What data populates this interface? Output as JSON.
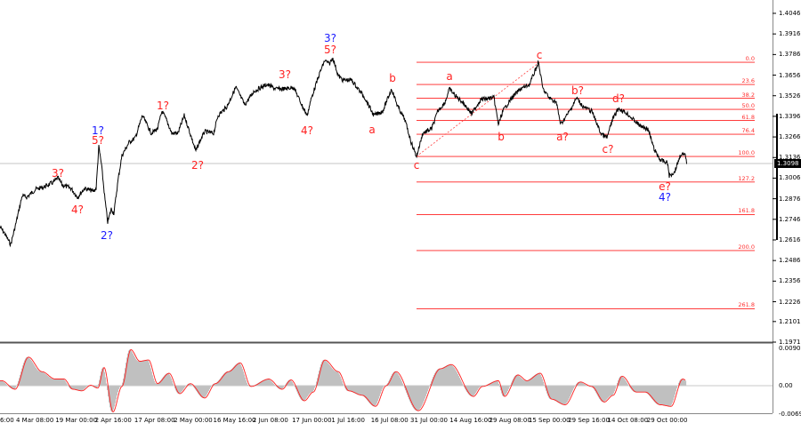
{
  "chart_data": {
    "type": "line",
    "title": "",
    "main_panel": {
      "y_ticks": [
        "1.4046",
        "1.3916",
        "1.3786",
        "1.3656",
        "1.3526",
        "1.3396",
        "1.3266",
        "1.3136",
        "1.3006",
        "1.2876",
        "1.2746",
        "1.2616",
        "1.2486",
        "1.2356",
        "1.2226",
        "1.2101",
        "1.1971"
      ],
      "ylim": [
        1.1971,
        1.4046
      ],
      "current_price": "1.3098",
      "price_points": [
        [
          0,
          1.2699
        ],
        [
          5,
          1.266
        ],
        [
          12,
          1.2587
        ],
        [
          17,
          1.2699
        ],
        [
          25,
          1.2896
        ],
        [
          30,
          1.2885
        ],
        [
          40,
          1.2935
        ],
        [
          50,
          1.2952
        ],
        [
          60,
          1.298
        ],
        [
          65,
          1.3008
        ],
        [
          70,
          1.2963
        ],
        [
          80,
          1.2941
        ],
        [
          87,
          1.2885
        ],
        [
          95,
          1.2941
        ],
        [
          105,
          1.2924
        ],
        [
          108,
          1.2941
        ],
        [
          111,
          1.3204
        ],
        [
          114,
          1.3092
        ],
        [
          118,
          1.2868
        ],
        [
          121,
          1.2728
        ],
        [
          125,
          1.2812
        ],
        [
          128,
          1.2784
        ],
        [
          133,
          1.3008
        ],
        [
          137,
          1.3148
        ],
        [
          145,
          1.3232
        ],
        [
          152,
          1.326
        ],
        [
          160,
          1.3401
        ],
        [
          165,
          1.3345
        ],
        [
          170,
          1.3289
        ],
        [
          177,
          1.3317
        ],
        [
          182,
          1.3429
        ],
        [
          187,
          1.3373
        ],
        [
          193,
          1.3289
        ],
        [
          200,
          1.3289
        ],
        [
          207,
          1.3401
        ],
        [
          212,
          1.3317
        ],
        [
          220,
          1.3176
        ],
        [
          224,
          1.3232
        ],
        [
          230,
          1.33
        ],
        [
          240,
          1.3289
        ],
        [
          245,
          1.3401
        ],
        [
          255,
          1.3457
        ],
        [
          265,
          1.358
        ],
        [
          270,
          1.3524
        ],
        [
          275,
          1.3468
        ],
        [
          285,
          1.3552
        ],
        [
          290,
          1.3569
        ],
        [
          300,
          1.3597
        ],
        [
          310,
          1.3569
        ],
        [
          320,
          1.3569
        ],
        [
          330,
          1.358
        ],
        [
          340,
          1.3457
        ],
        [
          345,
          1.3401
        ],
        [
          350,
          1.3513
        ],
        [
          360,
          1.3681
        ],
        [
          365,
          1.3749
        ],
        [
          370,
          1.3726
        ],
        [
          374,
          1.3765
        ],
        [
          380,
          1.3653
        ],
        [
          385,
          1.3625
        ],
        [
          395,
          1.3625
        ],
        [
          410,
          1.3513
        ],
        [
          420,
          1.3401
        ],
        [
          430,
          1.3429
        ],
        [
          440,
          1.3569
        ],
        [
          447,
          1.3457
        ],
        [
          455,
          1.3373
        ],
        [
          462,
          1.3232
        ],
        [
          468,
          1.3143
        ],
        [
          475,
          1.3289
        ],
        [
          485,
          1.3317
        ],
        [
          492,
          1.3429
        ],
        [
          500,
          1.3485
        ],
        [
          505,
          1.3569
        ],
        [
          512,
          1.3524
        ],
        [
          520,
          1.3485
        ],
        [
          530,
          1.3412
        ],
        [
          540,
          1.3502
        ],
        [
          555,
          1.3513
        ],
        [
          560,
          1.3345
        ],
        [
          565,
          1.3429
        ],
        [
          575,
          1.3513
        ],
        [
          585,
          1.3569
        ],
        [
          595,
          1.3597
        ],
        [
          605,
          1.3737
        ],
        [
          610,
          1.3569
        ],
        [
          617,
          1.3513
        ],
        [
          625,
          1.3485
        ],
        [
          630,
          1.3345
        ],
        [
          640,
          1.3429
        ],
        [
          648,
          1.3513
        ],
        [
          655,
          1.3457
        ],
        [
          665,
          1.3429
        ],
        [
          675,
          1.3289
        ],
        [
          682,
          1.326
        ],
        [
          688,
          1.3373
        ],
        [
          695,
          1.3446
        ],
        [
          705,
          1.3412
        ],
        [
          712,
          1.3373
        ],
        [
          720,
          1.3333
        ],
        [
          728,
          1.3317
        ],
        [
          735,
          1.3188
        ],
        [
          742,
          1.312
        ],
        [
          750,
          1.3103
        ],
        [
          752,
          1.3019
        ],
        [
          758,
          1.3047
        ],
        [
          765,
          1.3159
        ],
        [
          770,
          1.3148
        ],
        [
          772,
          1.3098
        ]
      ],
      "fibonacci": {
        "price_0": 1.3737,
        "price_100": 1.3143,
        "levels": [
          "0.0",
          "23.6",
          "38.2",
          "50.0",
          "61.8",
          "76.4",
          "100.0",
          "127.2",
          "161.8",
          "200.0",
          "261.8"
        ],
        "color": "#ff2020"
      },
      "wave_labels": [
        {
          "text": "3?",
          "color": "#ff2020"
        },
        {
          "text": "4?",
          "color": "#ff2020"
        },
        {
          "text": "1?",
          "color": "#1a1aff"
        },
        {
          "text": "5?",
          "color": "#ff2020"
        },
        {
          "text": "2?",
          "color": "#1a1aff"
        },
        {
          "text": "1?",
          "color": "#ff2020"
        },
        {
          "text": "2?",
          "color": "#ff2020"
        },
        {
          "text": "3?",
          "color": "#ff2020"
        },
        {
          "text": "4?",
          "color": "#ff2020"
        },
        {
          "text": "3?",
          "color": "#1a1aff"
        },
        {
          "text": "5?",
          "color": "#ff2020"
        },
        {
          "text": "a",
          "color": "#ff2020"
        },
        {
          "text": "b",
          "color": "#ff2020"
        },
        {
          "text": "c",
          "color": "#ff2020"
        },
        {
          "text": "a",
          "color": "#ff2020"
        },
        {
          "text": "b",
          "color": "#ff2020"
        },
        {
          "text": "c",
          "color": "#ff2020"
        },
        {
          "text": "a?",
          "color": "#ff2020"
        },
        {
          "text": "b?",
          "color": "#ff2020"
        },
        {
          "text": "c?",
          "color": "#ff2020"
        },
        {
          "text": "d?",
          "color": "#ff2020"
        },
        {
          "text": "e?",
          "color": "#ff2020"
        },
        {
          "text": "4?",
          "color": "#1a1aff"
        }
      ]
    },
    "oscillator_panel": {
      "y_ticks": [
        "0.00901",
        "0.00",
        "-0.00692"
      ],
      "ylim": [
        -0.00692,
        0.00901
      ],
      "histogram_color": "#c0c0c0",
      "signal_color": "#ff2020",
      "points": [
        [
          0,
          0.0012
        ],
        [
          15,
          -0.0009
        ],
        [
          30,
          0.0069
        ],
        [
          45,
          0.0034
        ],
        [
          60,
          0.0016
        ],
        [
          70,
          0.0016
        ],
        [
          80,
          -0.0009
        ],
        [
          90,
          -0.0013
        ],
        [
          100,
          0.0001
        ],
        [
          108,
          -0.0006
        ],
        [
          115,
          0.0044
        ],
        [
          125,
          -0.0066
        ],
        [
          135,
          -0.0002
        ],
        [
          145,
          0.0087
        ],
        [
          155,
          0.0059
        ],
        [
          165,
          0.0062
        ],
        [
          175,
          0.0005
        ],
        [
          188,
          0.003
        ],
        [
          200,
          -0.002
        ],
        [
          212,
          0.0005
        ],
        [
          228,
          -0.0031
        ],
        [
          240,
          0.0005
        ],
        [
          255,
          0.0034
        ],
        [
          268,
          0.0055
        ],
        [
          280,
          -0.0002
        ],
        [
          300,
          0.0016
        ],
        [
          315,
          -0.0009
        ],
        [
          325,
          0.0014
        ],
        [
          340,
          -0.0038
        ],
        [
          350,
          -0.0016
        ],
        [
          363,
          0.0062
        ],
        [
          378,
          0.0034
        ],
        [
          390,
          -0.0013
        ],
        [
          405,
          -0.0024
        ],
        [
          420,
          -0.0052
        ],
        [
          432,
          0.0
        ],
        [
          443,
          0.0034
        ],
        [
          468,
          -0.0063
        ],
        [
          493,
          0.0041
        ],
        [
          505,
          0.0051
        ],
        [
          530,
          -0.0027
        ],
        [
          540,
          -0.0002
        ],
        [
          558,
          0.0012
        ],
        [
          565,
          -0.0027
        ],
        [
          580,
          0.0026
        ],
        [
          590,
          0.0012
        ],
        [
          605,
          0.003
        ],
        [
          618,
          -0.0034
        ],
        [
          633,
          -0.0048
        ],
        [
          650,
          0.0009
        ],
        [
          663,
          -0.0002
        ],
        [
          677,
          -0.0041
        ],
        [
          687,
          -0.0024
        ],
        [
          697,
          0.0023
        ],
        [
          713,
          -0.0016
        ],
        [
          723,
          -0.0016
        ],
        [
          740,
          -0.0048
        ],
        [
          752,
          -0.0052
        ],
        [
          765,
          0.0016
        ],
        [
          770,
          0.0012
        ]
      ]
    },
    "x_ticks": [
      "6:00",
      "4 Mar 08:00",
      "19 Mar 00:00",
      "2 Apr 16:00",
      "17 Apr 08:00",
      "2 May 00:00",
      "16 May 16:00",
      "2 Jun 08:00",
      "17 Jun 00:00",
      "1 Jul 16:00",
      "16 Jul 08:00",
      "31 Jul 00:00",
      "14 Aug 16:00",
      "29 Aug 08:00",
      "15 Sep 00:00",
      "29 Sep 16:00",
      "14 Oct 08:00",
      "29 Oct 00:00"
    ]
  }
}
